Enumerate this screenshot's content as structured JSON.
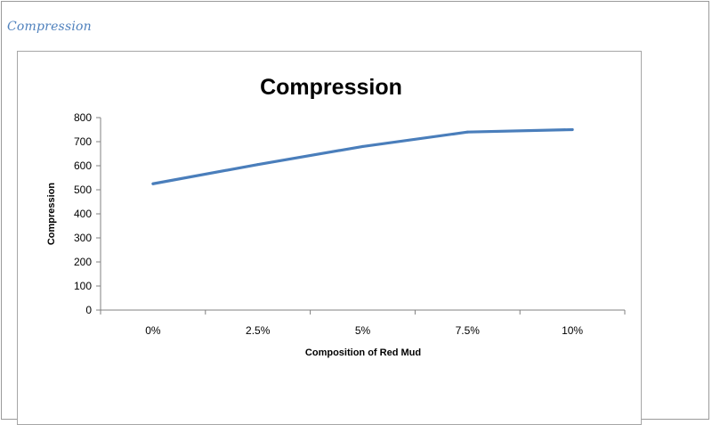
{
  "caption": "Compression",
  "colors": {
    "line": "#4a7ebb",
    "caption": "#4f81bd",
    "axis": "#808080"
  },
  "chart_data": {
    "type": "line",
    "title": "Compression",
    "xlabel": "Composition of Red Mud",
    "ylabel": "Compression",
    "categories": [
      "0%",
      "2.5%",
      "5%",
      "7.5%",
      "10%"
    ],
    "series": [
      {
        "values": [
          525,
          605,
          680,
          740,
          750
        ]
      }
    ],
    "ylim": [
      0,
      800
    ],
    "yticks": [
      0,
      100,
      200,
      300,
      400,
      500,
      600,
      700,
      800
    ],
    "grid": false,
    "legend": "none"
  }
}
